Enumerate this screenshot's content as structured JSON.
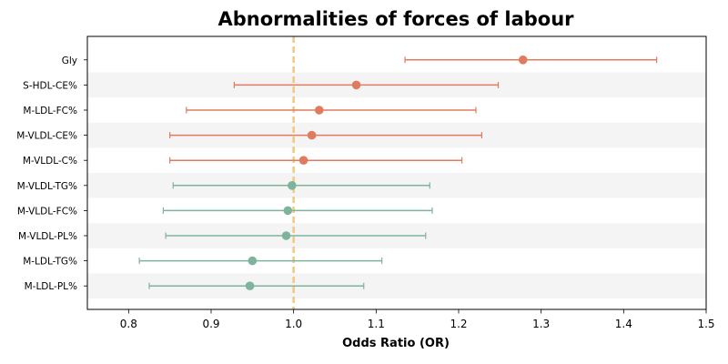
{
  "chart_data": {
    "type": "scatter",
    "subtype": "forest-plot",
    "title": "Abnormalities of forces of labour",
    "xlabel": "Odds Ratio (OR)",
    "ylabel": "",
    "xlim": [
      0.75,
      1.5
    ],
    "xticks": [
      0.8,
      0.9,
      1.0,
      1.1,
      1.2,
      1.3,
      1.4,
      1.5
    ],
    "xtick_labels": [
      "0.8",
      "0.9",
      "1.0",
      "1.1",
      "1.2",
      "1.3",
      "1.4",
      "1.5"
    ],
    "reference_line": {
      "x": 1.0,
      "style": "dashed",
      "color": "#f5c77e"
    },
    "grid": false,
    "row_banding": true,
    "colors": {
      "risk": "#e07b5f",
      "protective": "#7fb39b",
      "band": "#f4f4f4"
    },
    "rows": [
      {
        "label": "Gly",
        "or": 1.278,
        "lower": 1.135,
        "upper": 1.44,
        "group": "risk"
      },
      {
        "label": "S-HDL-CE%",
        "or": 1.076,
        "lower": 0.928,
        "upper": 1.248,
        "group": "risk"
      },
      {
        "label": "M-LDL-FC%",
        "or": 1.031,
        "lower": 0.87,
        "upper": 1.221,
        "group": "risk"
      },
      {
        "label": "M-VLDL-CE%",
        "or": 1.022,
        "lower": 0.85,
        "upper": 1.228,
        "group": "risk"
      },
      {
        "label": "M-VLDL-C%",
        "or": 1.012,
        "lower": 0.85,
        "upper": 1.204,
        "group": "risk"
      },
      {
        "label": "M-VLDL-TG%",
        "or": 0.998,
        "lower": 0.854,
        "upper": 1.165,
        "group": "protective"
      },
      {
        "label": "M-VLDL-FC%",
        "or": 0.993,
        "lower": 0.842,
        "upper": 1.168,
        "group": "protective"
      },
      {
        "label": "M-VLDL-PL%",
        "or": 0.991,
        "lower": 0.845,
        "upper": 1.16,
        "group": "protective"
      },
      {
        "label": "M-LDL-TG%",
        "or": 0.95,
        "lower": 0.813,
        "upper": 1.107,
        "group": "protective"
      },
      {
        "label": "M-LDL-PL%",
        "or": 0.947,
        "lower": 0.825,
        "upper": 1.085,
        "group": "protective"
      }
    ]
  }
}
